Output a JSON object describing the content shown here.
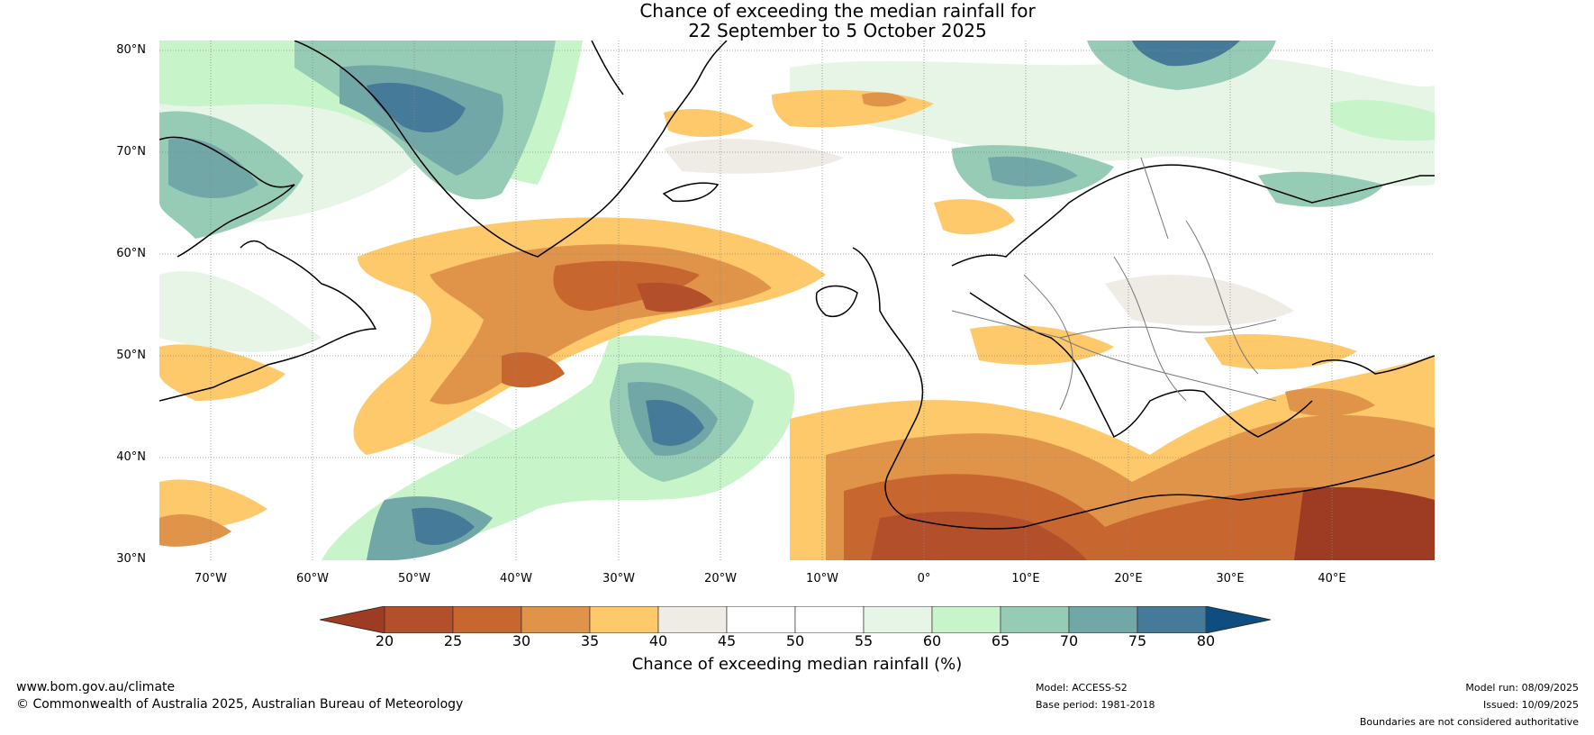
{
  "title": {
    "line1": "Chance of exceeding the median rainfall for",
    "line2": "22 September to 5 October 2025"
  },
  "map": {
    "region": "North Atlantic and Europe",
    "lat_range": [
      30,
      80
    ],
    "lon_range": [
      -75,
      50
    ],
    "lat_labels": [
      "80°N",
      "70°N",
      "60°N",
      "50°N",
      "40°N",
      "30°N"
    ],
    "lon_labels": [
      "70°W",
      "60°W",
      "50°W",
      "40°W",
      "30°W",
      "20°W",
      "10°W",
      "0°",
      "10°E",
      "20°E",
      "30°E",
      "40°E"
    ]
  },
  "colorbar": {
    "ticks": [
      "20",
      "25",
      "30",
      "35",
      "40",
      "45",
      "50",
      "55",
      "60",
      "65",
      "70",
      "75",
      "80"
    ],
    "colors": [
      "#9e3c23",
      "#b44f2b",
      "#c8662f",
      "#e0944a",
      "#fdc96a",
      "#efece6",
      "#ffffff",
      "#ffffff",
      "#e6f5e6",
      "#c7f5c9",
      "#96ccb5",
      "#72a7a8",
      "#457a98",
      "#0f4d80"
    ],
    "label": "Chance of exceeding median rainfall (%)"
  },
  "footer": {
    "website": "www.bom.gov.au/climate",
    "copyright": "© Commonwealth of Australia 2025, Australian Bureau of Meteorology",
    "model": "Model: ACCESS-S2",
    "base_period": "Base period: 1981-2018",
    "model_run": "Model run: 08/09/2025",
    "issued": "Issued: 10/09/2025",
    "disclaimer": "Boundaries are not considered authoritative"
  }
}
